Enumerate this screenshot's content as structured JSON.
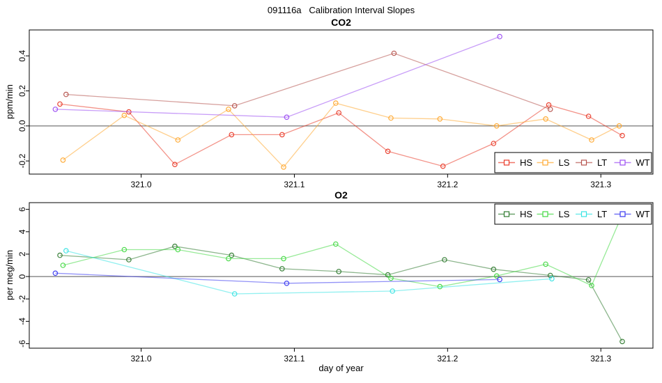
{
  "title": "091116a   Calibration Interval Slopes",
  "chart_data": [
    {
      "type": "line",
      "title": "CO2",
      "ylabel": "ppm/min",
      "xlabel": "",
      "xlim": [
        320.927,
        321.334
      ],
      "ylim": [
        -0.275,
        0.548
      ],
      "xtick_values": [
        321.0,
        321.1,
        321.2,
        321.3
      ],
      "xtick_labels": [
        "321.0",
        "321.1",
        "321.2",
        "321.3"
      ],
      "ytick_values": [
        -0.2,
        0.0,
        0.2,
        0.4
      ],
      "ytick_labels": [
        "-0.2",
        "0.0",
        "0.2",
        "0.4"
      ],
      "zero_line": true,
      "grid": false,
      "legend_position": "bottom-right",
      "series": [
        {
          "name": "HS",
          "color": "#e93a28",
          "points": [
            [
              320.947,
              0.125
            ],
            [
              320.992,
              0.08
            ],
            [
              321.022,
              -0.22
            ],
            [
              321.059,
              -0.05
            ],
            [
              321.092,
              -0.05
            ],
            [
              321.129,
              0.075
            ],
            [
              321.161,
              -0.145
            ],
            [
              321.197,
              -0.23
            ],
            [
              321.23,
              -0.1
            ],
            [
              321.266,
              0.12
            ],
            [
              321.292,
              0.055
            ],
            [
              321.314,
              -0.055
            ]
          ]
        },
        {
          "name": "LS",
          "color": "#ffa82e",
          "points": [
            [
              320.949,
              -0.195
            ],
            [
              320.989,
              0.06
            ],
            [
              321.024,
              -0.08
            ],
            [
              321.057,
              0.095
            ],
            [
              321.093,
              -0.235
            ],
            [
              321.127,
              0.13
            ],
            [
              321.163,
              0.045
            ],
            [
              321.195,
              0.04
            ],
            [
              321.232,
              0.0
            ],
            [
              321.264,
              0.04
            ],
            [
              321.294,
              -0.08
            ],
            [
              321.312,
              0.0
            ]
          ]
        },
        {
          "name": "LT",
          "color": "#b5524c",
          "points": [
            [
              320.951,
              0.18
            ],
            [
              321.061,
              0.115
            ],
            [
              321.165,
              0.415
            ],
            [
              321.267,
              0.095
            ]
          ]
        },
        {
          "name": "WT",
          "color": "#9b4df2",
          "points": [
            [
              320.944,
              0.095
            ],
            [
              321.095,
              0.05
            ],
            [
              321.234,
              0.51
            ]
          ]
        }
      ]
    },
    {
      "type": "line",
      "title": "O2",
      "ylabel": "per meg/min",
      "xlabel": "day of year",
      "xlim": [
        320.927,
        321.334
      ],
      "ylim": [
        -6.4,
        6.6
      ],
      "xtick_values": [
        321.0,
        321.1,
        321.2,
        321.3
      ],
      "xtick_labels": [
        "321.0",
        "321.1",
        "321.2",
        "321.3"
      ],
      "ytick_values": [
        -6,
        -4,
        -2,
        0,
        2,
        4,
        6
      ],
      "ytick_labels": [
        "-6",
        "-4",
        "-2",
        "0",
        "2",
        "4",
        "6"
      ],
      "zero_line": true,
      "grid": false,
      "legend_position": "top-right",
      "series": [
        {
          "name": "HS",
          "color": "#2f7a2f",
          "points": [
            [
              320.947,
              1.9
            ],
            [
              320.992,
              1.5
            ],
            [
              321.022,
              2.7
            ],
            [
              321.059,
              1.9
            ],
            [
              321.092,
              0.7
            ],
            [
              321.129,
              0.45
            ],
            [
              321.161,
              0.15
            ],
            [
              321.198,
              1.5
            ],
            [
              321.23,
              0.65
            ],
            [
              321.267,
              0.1
            ],
            [
              321.292,
              -0.3
            ],
            [
              321.314,
              -5.8
            ]
          ]
        },
        {
          "name": "LS",
          "color": "#41d941",
          "points": [
            [
              320.949,
              1.0
            ],
            [
              320.989,
              2.4
            ],
            [
              321.024,
              2.4
            ],
            [
              321.057,
              1.6
            ],
            [
              321.093,
              1.6
            ],
            [
              321.127,
              2.9
            ],
            [
              321.163,
              -0.15
            ],
            [
              321.195,
              -0.9
            ],
            [
              321.232,
              0.05
            ],
            [
              321.264,
              1.1
            ],
            [
              321.294,
              -0.8
            ],
            [
              321.312,
              4.9
            ]
          ]
        },
        {
          "name": "LT",
          "color": "#38e3e3",
          "points": [
            [
              320.951,
              2.3
            ],
            [
              321.061,
              -1.55
            ],
            [
              321.164,
              -1.3
            ],
            [
              321.268,
              -0.2
            ]
          ]
        },
        {
          "name": "WT",
          "color": "#3a3af0",
          "points": [
            [
              320.944,
              0.3
            ],
            [
              321.095,
              -0.6
            ],
            [
              321.234,
              -0.27
            ]
          ]
        }
      ]
    }
  ]
}
